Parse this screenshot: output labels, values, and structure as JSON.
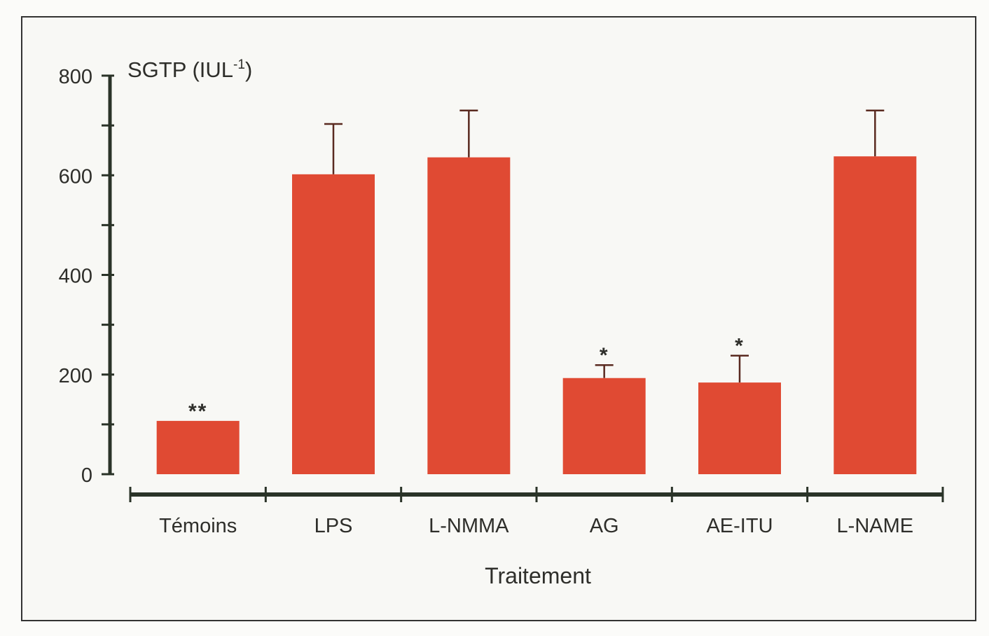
{
  "chart_data": {
    "type": "bar",
    "title": "",
    "ylabel": "SGTP (IUL-1)",
    "ylabel_parts": {
      "main": "SGTP (IUL",
      "sup": "-1",
      "close": ")"
    },
    "xlabel": "Traitement",
    "ylim": [
      0,
      800
    ],
    "yticks": [
      0,
      200,
      400,
      600,
      800
    ],
    "yminor_step": 100,
    "grid": false,
    "categories": [
      "Témoins",
      "LPS",
      "L-NMMA",
      "AG",
      "AE-ITU",
      "L-NAME"
    ],
    "values": [
      107,
      602,
      636,
      193,
      184,
      638
    ],
    "error_upper": [
      null,
      703,
      730,
      219,
      238,
      730
    ],
    "annotations": [
      "**",
      "",
      "",
      "*",
      "*",
      ""
    ],
    "colors": {
      "bar": "#e04a33",
      "axis": "#2a3328",
      "text": "#2e2e2a",
      "frame": "#333333"
    }
  }
}
